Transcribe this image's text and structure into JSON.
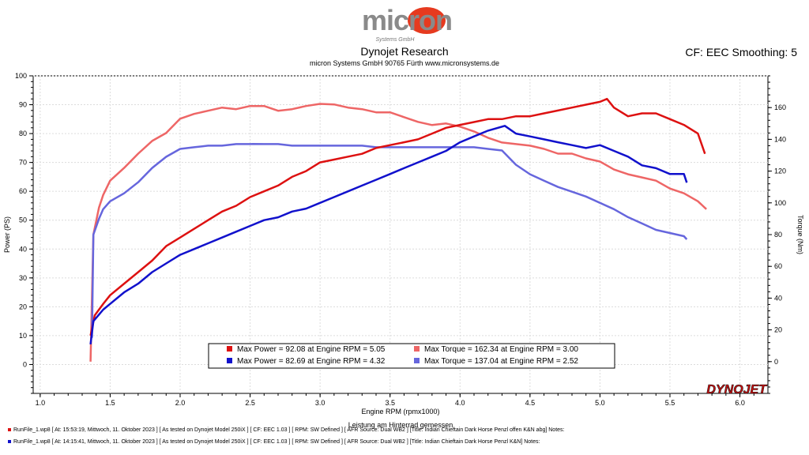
{
  "header": {
    "logo_text": "micron",
    "logo_subtext": "Systems GmbH",
    "title": "Dynojet Research",
    "subtitle": "micron Systems GmbH  90765 Fürth www.micronsystems.de",
    "smoothing": "CF: EEC Smoothing: 5"
  },
  "brand_logo_text": "DYNOJET",
  "colors": {
    "power1": "#dd1111",
    "power2": "#1111cc",
    "torque1": "#ee6666",
    "torque2": "#6666dd"
  },
  "chart_data": {
    "type": "line",
    "xlabel": "Engine RPM (rpmx1000)",
    "xlabel2": "Leistung am Hinterrad gemessen",
    "ylabel_left": "Power (PS)",
    "ylabel_right": "Torque (Nm)",
    "xlim": [
      0.95,
      6.2
    ],
    "ylim_left": [
      -10,
      100
    ],
    "ylim_right": [
      -20,
      180
    ],
    "x_ticks": [
      "1.0",
      "1.5",
      "2.0",
      "2.5",
      "3.0",
      "3.5",
      "4.0",
      "4.5",
      "5.0",
      "5.5",
      "6.0"
    ],
    "y_ticks_left": [
      "0",
      "10",
      "20",
      "30",
      "40",
      "50",
      "60",
      "70",
      "80",
      "90",
      "100"
    ],
    "y_ticks_right": [
      "0",
      "20",
      "40",
      "60",
      "80",
      "100",
      "120",
      "140",
      "160"
    ],
    "grid": true,
    "series": [
      {
        "axis": "left",
        "x": [
          1.36,
          1.39,
          1.45,
          1.5,
          1.6,
          1.7,
          1.8,
          1.9,
          2.0,
          2.1,
          2.2,
          2.3,
          2.4,
          2.5,
          2.6,
          2.7,
          2.8,
          2.9,
          3.0,
          3.1,
          3.2,
          3.3,
          3.4,
          3.5,
          3.6,
          3.7,
          3.8,
          3.9,
          4.0,
          4.1,
          4.2,
          4.3,
          4.4,
          4.5,
          4.6,
          4.7,
          4.8,
          4.9,
          5.0,
          5.05,
          5.1,
          5.2,
          5.3,
          5.4,
          5.5,
          5.6,
          5.7,
          5.75
        ],
        "y": [
          10,
          17,
          21,
          24,
          28,
          32,
          36,
          41,
          44,
          47,
          50,
          53,
          55,
          58,
          60,
          62,
          65,
          67,
          70,
          71,
          72,
          73,
          75,
          76,
          77,
          78,
          80,
          82,
          83,
          84,
          85,
          85,
          86,
          86,
          87,
          88,
          89,
          90,
          91,
          92,
          89,
          86,
          87,
          87,
          85,
          83,
          80,
          73
        ]
      },
      {
        "axis": "left",
        "x": [
          1.36,
          1.38,
          1.45,
          1.5,
          1.6,
          1.7,
          1.8,
          1.9,
          2.0,
          2.1,
          2.2,
          2.3,
          2.4,
          2.5,
          2.6,
          2.7,
          2.8,
          2.9,
          3.0,
          3.1,
          3.2,
          3.3,
          3.4,
          3.5,
          3.6,
          3.7,
          3.8,
          3.9,
          4.0,
          4.1,
          4.2,
          4.32,
          4.4,
          4.5,
          4.6,
          4.7,
          4.8,
          4.9,
          5.0,
          5.1,
          5.2,
          5.3,
          5.4,
          5.5,
          5.6,
          5.62
        ],
        "y": [
          7,
          15,
          19,
          21,
          25,
          28,
          32,
          35,
          38,
          40,
          42,
          44,
          46,
          48,
          50,
          51,
          53,
          54,
          56,
          58,
          60,
          62,
          64,
          66,
          68,
          70,
          72,
          74,
          77,
          79,
          81,
          82.69,
          80,
          79,
          78,
          77,
          76,
          75,
          76,
          74,
          72,
          69,
          68,
          66,
          66,
          63
        ]
      },
      {
        "axis": "right",
        "x": [
          1.36,
          1.38,
          1.42,
          1.45,
          1.5,
          1.6,
          1.7,
          1.8,
          1.9,
          2.0,
          2.1,
          2.2,
          2.3,
          2.4,
          2.5,
          2.6,
          2.7,
          2.8,
          2.9,
          3.0,
          3.1,
          3.2,
          3.3,
          3.4,
          3.5,
          3.6,
          3.7,
          3.8,
          3.9,
          4.0,
          4.1,
          4.2,
          4.3,
          4.4,
          4.5,
          4.6,
          4.7,
          4.8,
          4.9,
          5.0,
          5.1,
          5.2,
          5.3,
          5.4,
          5.5,
          5.6,
          5.7,
          5.76
        ],
        "y": [
          0,
          80,
          97,
          105,
          114,
          122,
          131,
          139,
          144,
          153,
          156,
          158,
          160,
          159,
          161,
          161,
          158,
          159,
          161,
          162.34,
          162,
          160,
          159,
          157,
          157,
          154,
          151,
          149,
          150,
          148,
          145,
          141,
          138,
          137,
          136,
          134,
          131,
          131,
          128,
          126,
          121,
          118,
          116,
          114,
          109,
          106,
          101,
          96
        ]
      },
      {
        "axis": "right",
        "x": [
          1.37,
          1.38,
          1.42,
          1.45,
          1.5,
          1.6,
          1.7,
          1.8,
          1.9,
          2.0,
          2.1,
          2.2,
          2.3,
          2.4,
          2.5,
          2.52,
          2.6,
          2.7,
          2.8,
          2.9,
          3.0,
          3.1,
          3.2,
          3.3,
          3.4,
          3.5,
          3.6,
          3.7,
          3.8,
          3.9,
          4.0,
          4.1,
          4.2,
          4.3,
          4.4,
          4.5,
          4.6,
          4.7,
          4.8,
          4.9,
          5.0,
          5.1,
          5.2,
          5.3,
          5.4,
          5.5,
          5.6,
          5.62
        ],
        "y": [
          15,
          80,
          90,
          96,
          101,
          106,
          113,
          122,
          129,
          134,
          135,
          136,
          136,
          137,
          137,
          137.04,
          137,
          137,
          136,
          136,
          136,
          136,
          136,
          136,
          135,
          135,
          135,
          135,
          135,
          135,
          135,
          135,
          134,
          133,
          124,
          118,
          114,
          110,
          107,
          104,
          100,
          96,
          91,
          87,
          83,
          81,
          79,
          77
        ]
      }
    ]
  },
  "legend": {
    "entries": [
      {
        "text": "Max Power = 92.08 at Engine RPM = 5.05"
      },
      {
        "text": "Max Torque = 162.34 at Engine RPM = 3.00"
      },
      {
        "text": "Max Power = 82.69 at Engine RPM = 4.32"
      },
      {
        "text": "Max Torque = 137.04 at Engine RPM = 2.52"
      }
    ]
  },
  "footer": {
    "line1": "RunFile_1.wp8  [  At:  15:53:19,  Mittwoch,  11.  Oktober  2023  ]  [  As  tested  on  Dynojet  Model  250iX  ]  [  CF:  EEC  1.03  ]  [  RPM:  SW  Defined  ]  [  AFR  Source:  Dual  WB2  ]  [Title:  Indian  Chieftain  Dark  Horse  Penzl  offen  K&N  abg]   Notes:",
    "line2": "RunFile_1.wp8  [  At:  14:15:41,  Mittwoch,  11.  Oktober  2023  ]  [  As  tested  on  Dynojet  Model  250iX  ]  [  CF:  EEC  1.03  ]  [  RPM:  SW  Defined  ]  [  AFR  Source:  Dual  WB2  ]  [Title:  Indian  Chieftain  Dark  Horse  Penzl  K&N]   Notes:"
  }
}
